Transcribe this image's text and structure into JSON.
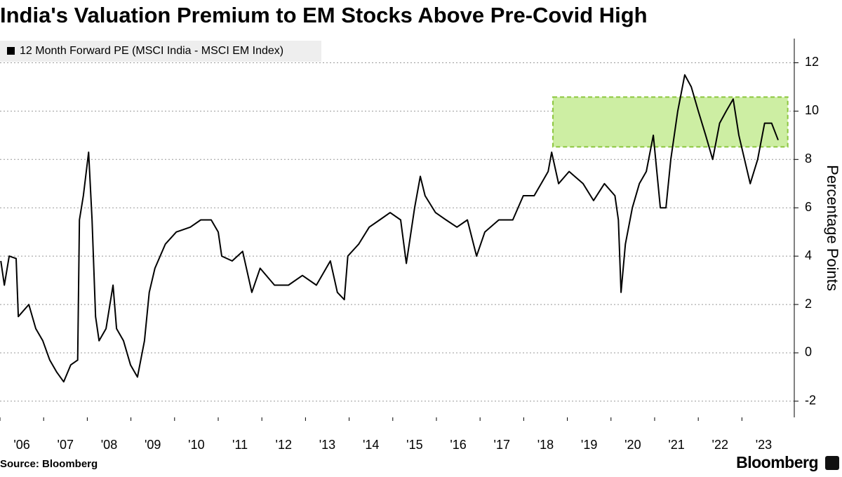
{
  "chart_data": {
    "type": "line",
    "title": "India's Valuation Premium to EM Stocks Above Pre-Covid High",
    "ylabel": "Percentage Points",
    "source": "Source: Bloomberg",
    "logo": "Bloomberg",
    "legend": "top-left",
    "grid": true,
    "xlim": [
      2006,
      2024.2
    ],
    "ylim": [
      -2.67,
      13
    ],
    "xticks": [
      {
        "value": 2006,
        "label": "'06"
      },
      {
        "value": 2007,
        "label": "'07"
      },
      {
        "value": 2008,
        "label": "'08"
      },
      {
        "value": 2009,
        "label": "'09"
      },
      {
        "value": 2010,
        "label": "'10"
      },
      {
        "value": 2011,
        "label": "'11"
      },
      {
        "value": 2012,
        "label": "'12"
      },
      {
        "value": 2013,
        "label": "'13"
      },
      {
        "value": 2014,
        "label": "'14"
      },
      {
        "value": 2015,
        "label": "'15"
      },
      {
        "value": 2016,
        "label": "'16"
      },
      {
        "value": 2017,
        "label": "'17"
      },
      {
        "value": 2018,
        "label": "'18"
      },
      {
        "value": 2019,
        "label": "'19"
      },
      {
        "value": 2020,
        "label": "'20"
      },
      {
        "value": 2021,
        "label": "'21"
      },
      {
        "value": 2022,
        "label": "'22"
      },
      {
        "value": 2023,
        "label": "'23"
      }
    ],
    "yticks": [
      -2,
      0,
      2,
      4,
      6,
      8,
      10,
      12
    ],
    "highlight": {
      "x": [
        2018.67,
        2024.05
      ],
      "y": [
        8.52,
        10.58
      ],
      "color": "#cdeea3",
      "edge_color": "#8cc63e"
    },
    "x": [
      2006.02,
      2006.1,
      2006.21,
      2006.37,
      2006.42,
      2006.66,
      2006.82,
      2006.98,
      2007.14,
      2007.3,
      2007.46,
      2007.62,
      2007.78,
      2007.82,
      2007.91,
      2008.03,
      2008.11,
      2008.19,
      2008.27,
      2008.43,
      2008.59,
      2008.67,
      2008.83,
      2008.99,
      2009.15,
      2009.31,
      2009.42,
      2009.55,
      2009.79,
      2010.04,
      2010.36,
      2010.6,
      2010.84,
      2011.0,
      2011.08,
      2011.32,
      2011.56,
      2011.77,
      2011.96,
      2012.29,
      2012.61,
      2012.93,
      2013.25,
      2013.57,
      2013.73,
      2013.89,
      2013.97,
      2014.22,
      2014.46,
      2014.7,
      2014.94,
      2015.18,
      2015.31,
      2015.5,
      2015.63,
      2015.74,
      2015.98,
      2016.22,
      2016.47,
      2016.71,
      2016.92,
      2017.11,
      2017.43,
      2017.75,
      2017.99,
      2018.24,
      2018.4,
      2018.56,
      2018.64,
      2018.8,
      2019.04,
      2019.36,
      2019.6,
      2019.85,
      2020.09,
      2020.17,
      2020.23,
      2020.33,
      2020.49,
      2020.65,
      2020.81,
      2020.97,
      2021.13,
      2021.26,
      2021.37,
      2021.53,
      2021.69,
      2021.84,
      2022.0,
      2022.17,
      2022.33,
      2022.49,
      2022.64,
      2022.8,
      2022.93,
      2023.06,
      2023.19,
      2023.36,
      2023.52,
      2023.68,
      2023.83
    ],
    "series": [
      {
        "name": "12 Month Forward PE (MSCI India - MSCI EM Index)",
        "color": "#000000",
        "values": [
          3.8,
          2.8,
          4.0,
          3.9,
          1.5,
          2.0,
          1.0,
          0.5,
          -0.3,
          -0.8,
          -1.2,
          -0.5,
          -0.3,
          5.5,
          6.5,
          8.3,
          5.5,
          1.5,
          0.5,
          1.0,
          2.8,
          1.0,
          0.5,
          -0.5,
          -1.0,
          0.5,
          2.5,
          3.5,
          4.5,
          5.0,
          5.2,
          5.5,
          5.5,
          5.0,
          4.0,
          3.8,
          4.2,
          2.5,
          3.5,
          2.8,
          2.8,
          3.2,
          2.8,
          3.8,
          2.5,
          2.2,
          4.0,
          4.5,
          5.2,
          5.5,
          5.8,
          5.5,
          3.7,
          6.0,
          7.3,
          6.5,
          5.8,
          5.5,
          5.2,
          5.5,
          4.0,
          5.0,
          5.5,
          5.5,
          6.5,
          6.5,
          7.0,
          7.5,
          8.3,
          7.0,
          7.5,
          7.0,
          6.3,
          7.0,
          6.5,
          5.5,
          2.5,
          4.5,
          6.0,
          7.0,
          7.5,
          9.0,
          6.0,
          6.0,
          8.0,
          10.0,
          11.5,
          11.0,
          10.0,
          9.0,
          8.0,
          9.5,
          10.0,
          10.5,
          9.0,
          8.0,
          7.0,
          8.0,
          9.5,
          9.5,
          8.8
        ]
      }
    ]
  }
}
